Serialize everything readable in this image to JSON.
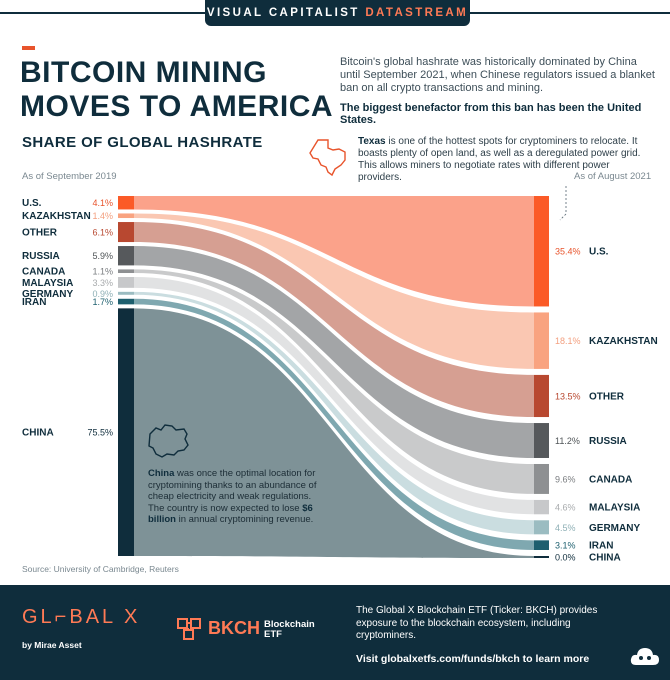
{
  "header": {
    "brand": "VISUAL CAPITALIST",
    "brand_accent": "DATASTREAM",
    "title_line1": "BITCOIN MINING",
    "title_line2": "MOVES TO AMERICA",
    "intro": "Bitcoin's global hashrate was historically dominated by China until September 2021, when Chinese regulators issued a blanket ban on all crypto transactions and mining.",
    "intro_bold": "The biggest benefactor from this ban has been the United States."
  },
  "subtitle": "SHARE OF GLOBAL HASHRATE",
  "texas_note": {
    "bold": "Texas",
    "text": " is one of the hottest spots for cryptominers to relocate. It boasts plenty of open land, as well as a deregulated power grid. This allows miners to negotiate rates with different power providers."
  },
  "china_note": {
    "bold1": "China",
    "text1": " was once the optimal location for cryptomining thanks to an abundance of cheap electricity and weak regulations. The country is now expected to lose ",
    "bold2": "$6 billion",
    "text2": " in annual cryptomining revenue."
  },
  "source": "Source: University of Cambridge, Reuters",
  "footer": {
    "logo": "GL⌐BAL X",
    "logo_sub": "by Mirae Asset",
    "fund_code": "BKCH",
    "fund_name": "Blockchain ETF",
    "description": "The Global X Blockchain ETF (Ticker: BKCH) provides exposure to the blockchain ecosystem, including cryptominers.",
    "visit": "Visit globalxetfs.com/funds/bkch to learn more"
  },
  "chart_data": {
    "type": "sankey",
    "left_label": "As of September 2019",
    "right_label": "As of August 2021",
    "units": "%",
    "countries": [
      {
        "name": "U.S.",
        "label": "U.S.",
        "share_2019": 4.1,
        "label_2019": "4.1%",
        "share_2021": 35.4,
        "label_2021": "35.4%",
        "color": "#fb5a27",
        "flow": "#fba28a",
        "pct_color_2019": "#e8542c",
        "pct_color_2021": "#ffffff"
      },
      {
        "name": "Kazakhstan",
        "label": "KAZAKHSTAN",
        "share_2019": 1.4,
        "label_2019": "1.4%",
        "share_2021": 18.1,
        "label_2021": "18.1%",
        "color": "#f9a380",
        "flow": "#fac7b2",
        "pct_color_2019": "#f3a080",
        "pct_color_2021": "#f3a080"
      },
      {
        "name": "Other",
        "label": "OTHER",
        "share_2019": 6.1,
        "label_2019": "6.1%",
        "share_2021": 13.5,
        "label_2021": "13.5%",
        "color": "#b84830",
        "flow": "#d69f92",
        "pct_color_2019": "#b84830",
        "pct_color_2021": "#b84830"
      },
      {
        "name": "Russia",
        "label": "RUSSIA",
        "share_2019": 5.9,
        "label_2019": "5.9%",
        "share_2021": 11.2,
        "label_2021": "11.2%",
        "color": "#56595c",
        "flow": "#a3a5a7",
        "pct_color_2019": "#4f5457",
        "pct_color_2021": "#4f5457"
      },
      {
        "name": "Canada",
        "label": "CANADA",
        "share_2019": 1.1,
        "label_2019": "1.1%",
        "share_2021": 9.6,
        "label_2021": "9.6%",
        "color": "#8e9092",
        "flow": "#c9cacb",
        "pct_color_2019": "#7a7d80",
        "pct_color_2021": "#7a7d80"
      },
      {
        "name": "Malaysia",
        "label": "MALAYSIA",
        "share_2019": 3.3,
        "label_2019": "3.3%",
        "share_2021": 4.6,
        "label_2021": "4.6%",
        "color": "#c7c8ca",
        "flow": "#e1e2e3",
        "pct_color_2019": "#a8abad",
        "pct_color_2021": "#a8abad"
      },
      {
        "name": "Germany",
        "label": "GERMANY",
        "share_2019": 0.9,
        "label_2019": "0.9%",
        "share_2021": 4.5,
        "label_2021": "4.5%",
        "color": "#9bbcc1",
        "flow": "#cadde0",
        "pct_color_2019": "#8fb0b6",
        "pct_color_2021": "#8fb0b6"
      },
      {
        "name": "Iran",
        "label": "IRAN",
        "share_2019": 1.7,
        "label_2019": "1.7%",
        "share_2021": 3.1,
        "label_2021": "3.1%",
        "color": "#1d5f6e",
        "flow": "#7fa8b0",
        "pct_color_2019": "#1d5f6e",
        "pct_color_2021": "#1d5f6e"
      },
      {
        "name": "China",
        "label": "CHINA",
        "share_2019": 75.5,
        "label_2019": "75.5%",
        "share_2021": 0.0,
        "label_2021": "0.0%",
        "color": "#0f2d3c",
        "flow": "#7e9297",
        "pct_color_2019": "#0f2d3c",
        "pct_color_2021": "#0f2d3c"
      }
    ]
  }
}
